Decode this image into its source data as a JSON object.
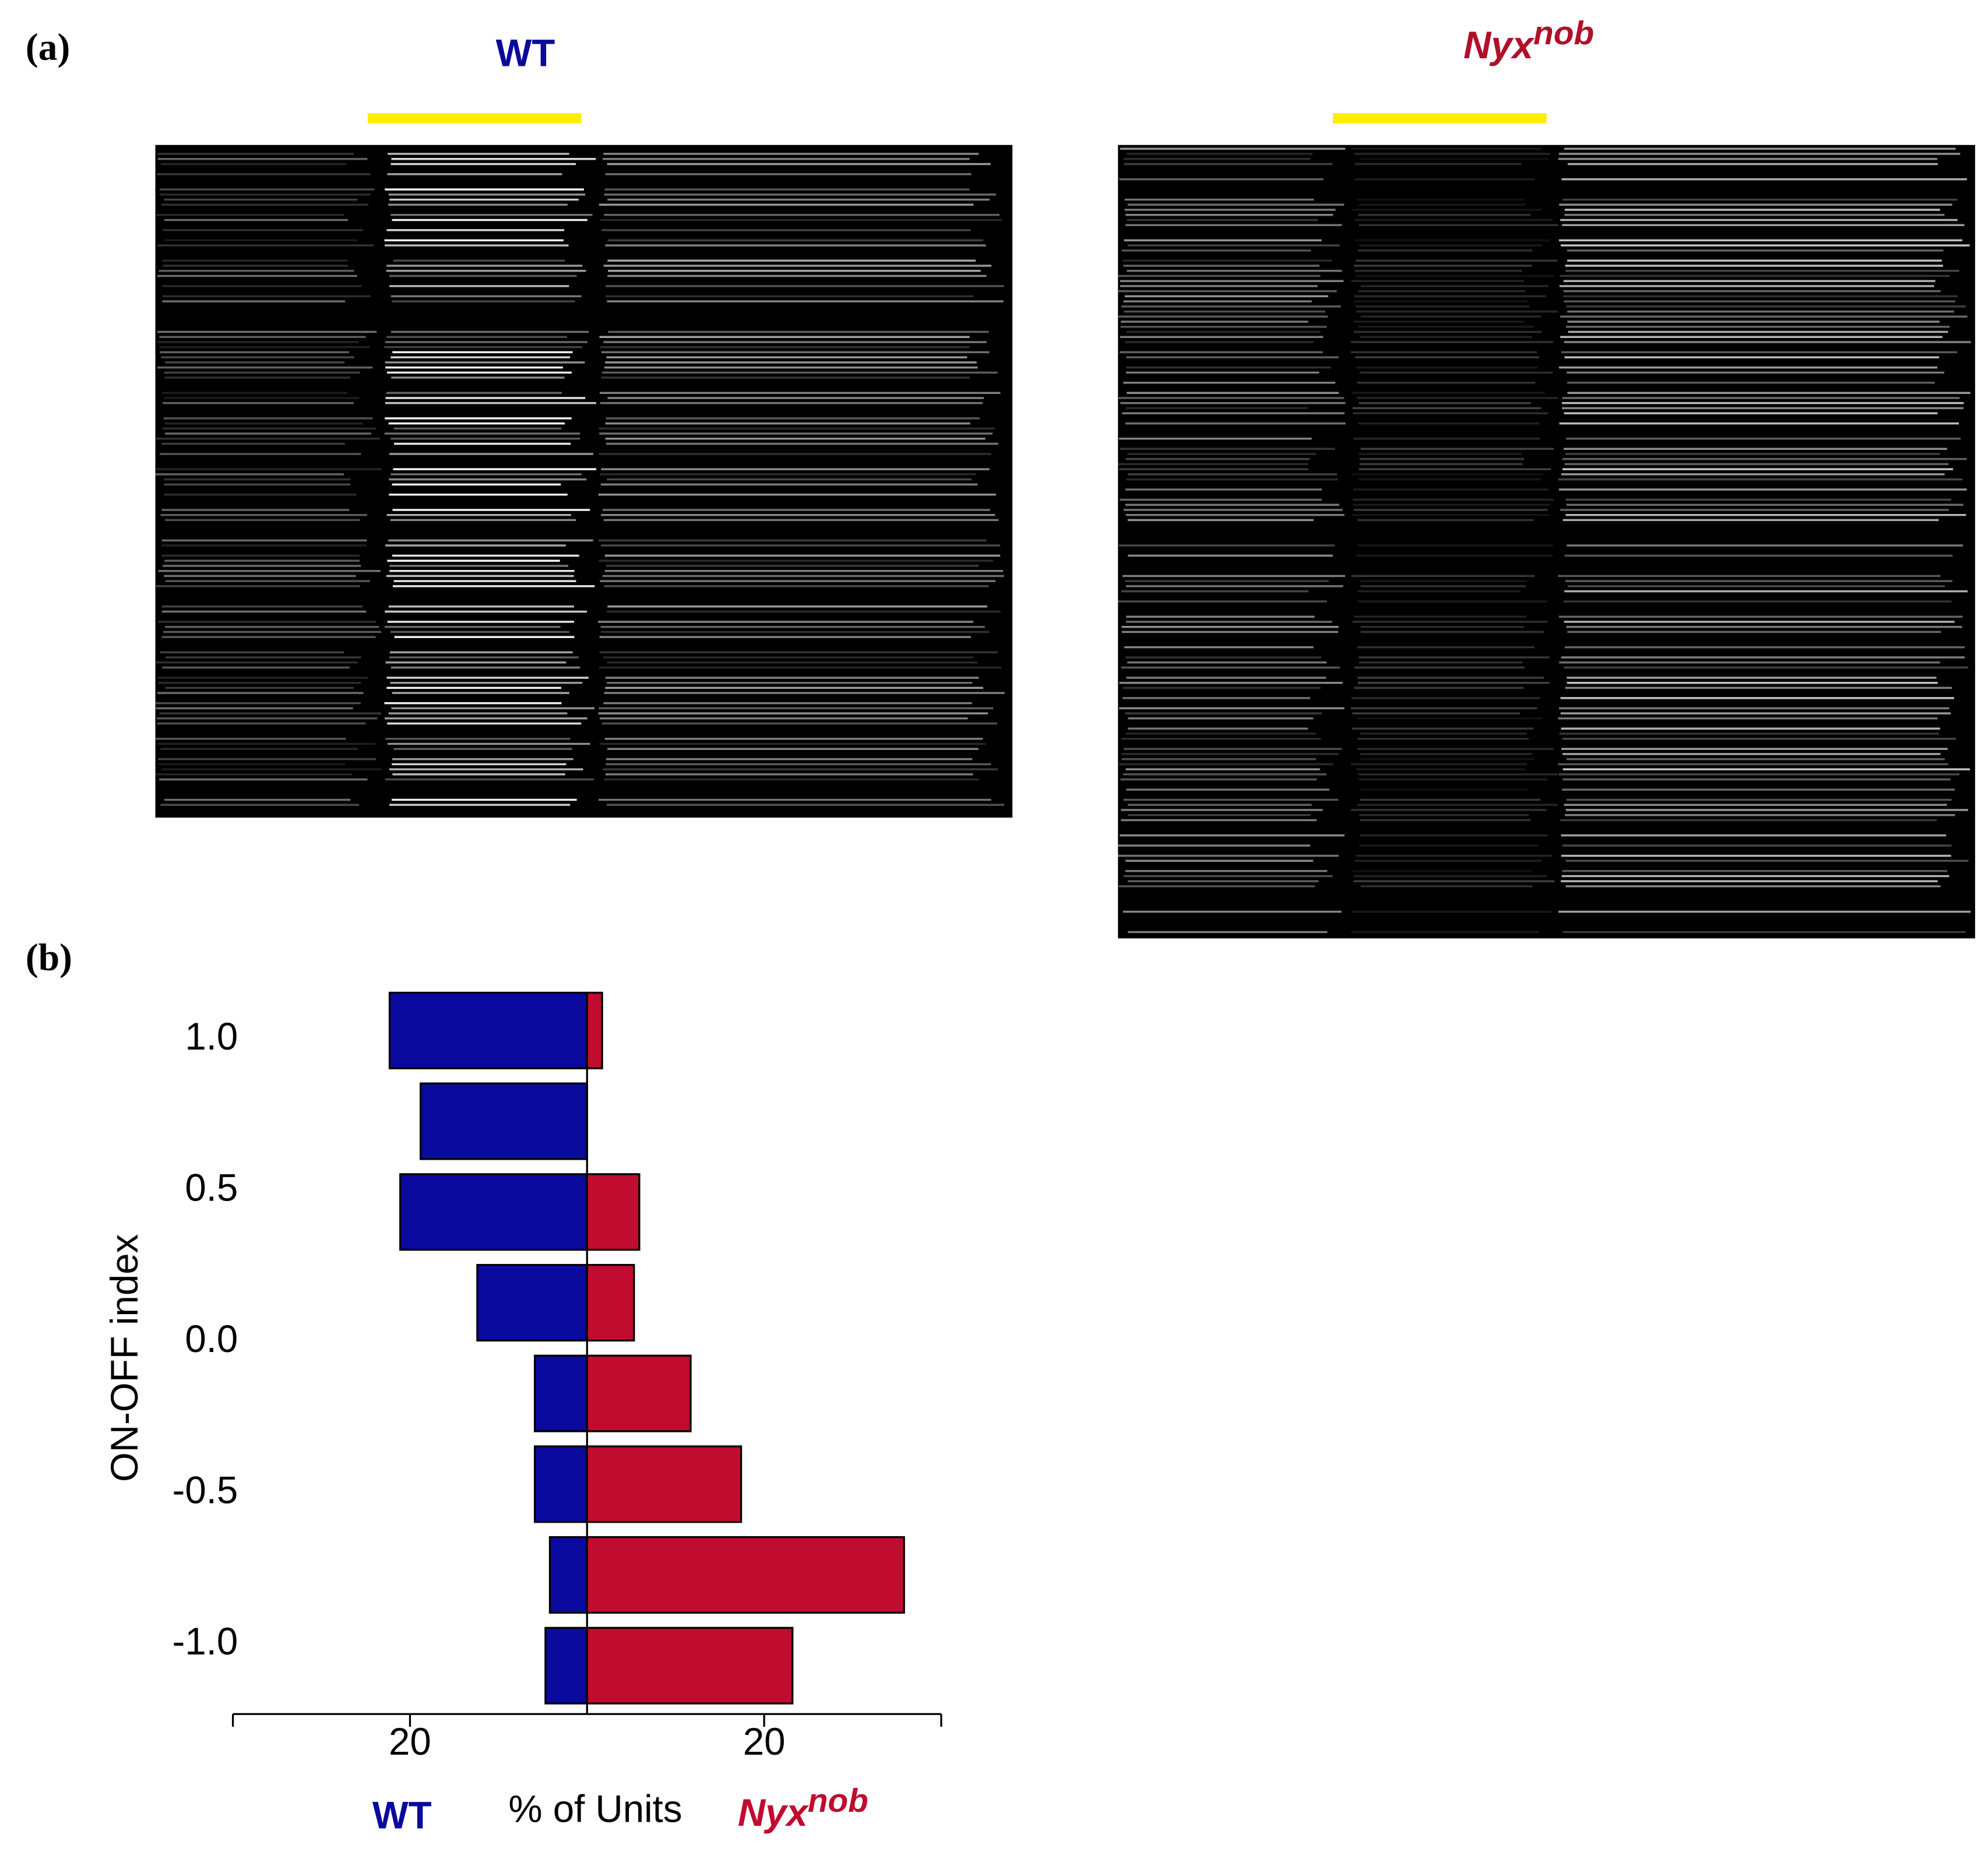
{
  "panel_labels": [
    "(a)",
    "(b)"
  ],
  "rasters": [
    {
      "title": "WT"
    },
    {
      "title": "Nyx",
      "title_superscript": "nob"
    }
  ],
  "chart_data": {
    "type": "butterfly_bar",
    "xlabel": "% of Units",
    "ylabel": "ON-OFF index",
    "y": [
      1.03,
      0.73,
      0.43,
      0.13,
      -0.17,
      -0.47,
      -0.77,
      -1.07
    ],
    "bar_height": 0.25,
    "series": [
      {
        "name": "WT",
        "color": "#0a0a9e",
        "side": "left",
        "values": [
          22.3,
          18.8,
          21.1,
          12.4,
          5.9,
          5.9,
          4.2,
          4.7
        ]
      },
      {
        "name": "Nyx",
        "superscript": "nob",
        "color": "#c00c2e",
        "side": "right",
        "values": [
          1.7,
          0,
          5.9,
          5.3,
          11.7,
          17.4,
          35.8,
          23.2
        ]
      }
    ],
    "xlim": [
      -40,
      40
    ],
    "xticks": [
      {
        "value": -20,
        "label": "20"
      },
      20
    ],
    "xminor_ticks": [
      -40,
      40
    ],
    "ylim": [
      -1.23,
      1.2
    ],
    "yticks": [
      {
        "value": 1.0,
        "label": "1.0"
      },
      0.5,
      {
        "value": 0.0,
        "label": "0.0"
      },
      -0.5,
      {
        "value": -1.0,
        "label": "-1.0"
      }
    ]
  }
}
